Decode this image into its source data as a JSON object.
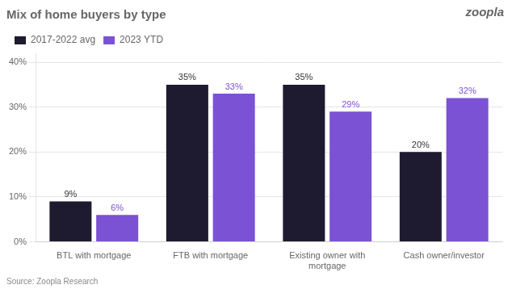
{
  "chart_data": {
    "type": "bar",
    "title": "Mix of home buyers by type",
    "categories": [
      "BTL with mortgage",
      "FTB with mortgage",
      "Existing owner with\nmortgage",
      "Cash owner/investor"
    ],
    "series": [
      {
        "name": "2017-2022 avg",
        "color": "#1e1b30",
        "values": [
          9,
          35,
          35,
          20
        ],
        "value_labels": [
          "9%",
          "35%",
          "35%",
          "20%"
        ]
      },
      {
        "name": "2023 YTD",
        "color": "#7b52d3",
        "values": [
          6,
          33,
          29,
          32
        ],
        "value_labels": [
          "6%",
          "33%",
          "29%",
          "32%"
        ]
      }
    ],
    "ylim": [
      0,
      42
    ],
    "yticks": [
      {
        "value": 0,
        "label": "0%"
      },
      {
        "value": 10,
        "label": "10%"
      },
      {
        "value": 20,
        "label": "20%"
      },
      {
        "value": 30,
        "label": "30%"
      },
      {
        "value": 40,
        "label": "40%"
      }
    ],
    "grid": true,
    "legend": "upper left",
    "data_labels": true,
    "annotations": [
      "zoopla",
      "Source: Zoopla Research"
    ]
  }
}
